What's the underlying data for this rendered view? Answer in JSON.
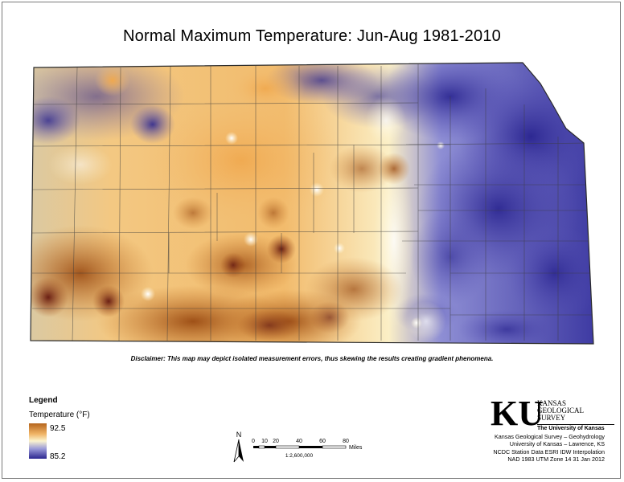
{
  "title": "Normal Maximum Temperature:  Jun-Aug 1981-2010",
  "disclaimer": "Disclaimer: This map may depict isolated measurement errors, thus skewing the results creating gradient phenomena.",
  "legend": {
    "title": "Legend",
    "variable": "Temperature (°F)",
    "max_label": "92.5",
    "min_label": "85.2",
    "max_value": 92.5,
    "min_value": 85.2,
    "colors": {
      "high": "#b5651d",
      "mid": "#fbf4cf",
      "low": "#2b2690"
    }
  },
  "north_arrow": {
    "label": "N",
    "icon": "north-arrow-icon"
  },
  "scale_bar": {
    "ticks": [
      "0",
      "10",
      "20",
      "40",
      "60",
      "80"
    ],
    "unit": "Miles",
    "ratio": "1:2,600,000"
  },
  "logo": {
    "mark": "KU",
    "name_lines": [
      "KANSAS",
      "GEOLOGICAL",
      "SURVEY"
    ],
    "university": "The University of Kansas"
  },
  "credits": [
    "Kansas Geological Survey – Geohydrology",
    "University of Kansas – Lawrence, KS",
    "NCDC Station Data  ESRI IDW Interpolation",
    "NAD 1983 UTM Zone 14  31 Jan 2012"
  ]
}
